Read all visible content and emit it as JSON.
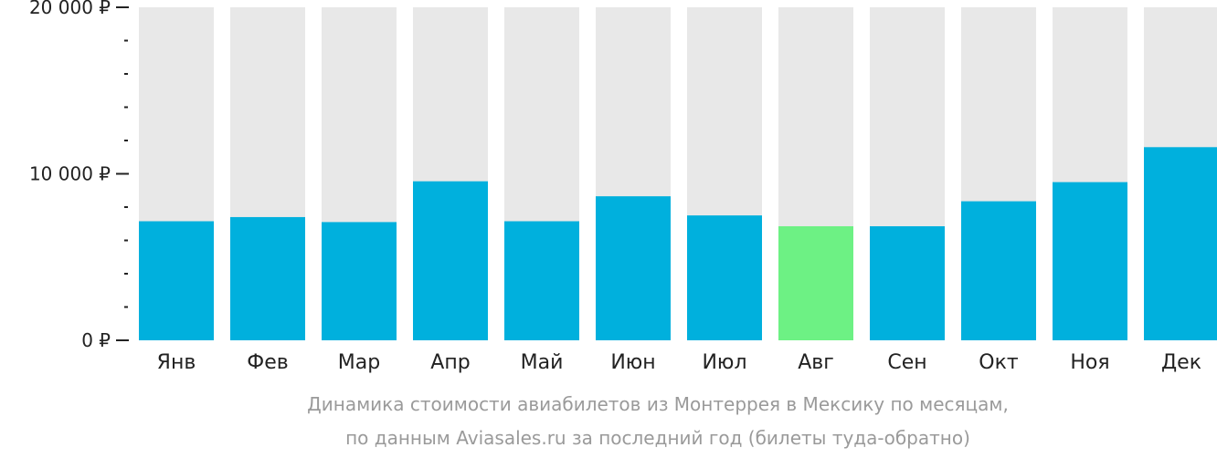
{
  "chart_data": {
    "type": "bar",
    "categories": [
      "Янв",
      "Фев",
      "Мар",
      "Апр",
      "Май",
      "Июн",
      "Июл",
      "Авг",
      "Сен",
      "Окт",
      "Ноя",
      "Дек"
    ],
    "values": [
      7150,
      7400,
      7100,
      9550,
      7150,
      8650,
      7500,
      6850,
      6850,
      8350,
      9500,
      11600
    ],
    "highlight_index": 7,
    "ylim": [
      0,
      20000
    ],
    "yticks": [
      {
        "value": 0,
        "label": "0 ₽"
      },
      {
        "value": 10000,
        "label": "10 000 ₽"
      },
      {
        "value": 20000,
        "label": "20 000 ₽"
      }
    ],
    "minor_tick_step": 2000,
    "colors": {
      "bar": "#00b0dd",
      "highlight": "#6df184",
      "background_bar": "#e8e8e8",
      "axis": "#222222"
    },
    "caption_line1": "Динамика стоимости авиабилетов из Монтеррея в Мексику по месяцам,",
    "caption_line2": "по данным Aviasales.ru за последний год (билеты туда-обратно)"
  }
}
